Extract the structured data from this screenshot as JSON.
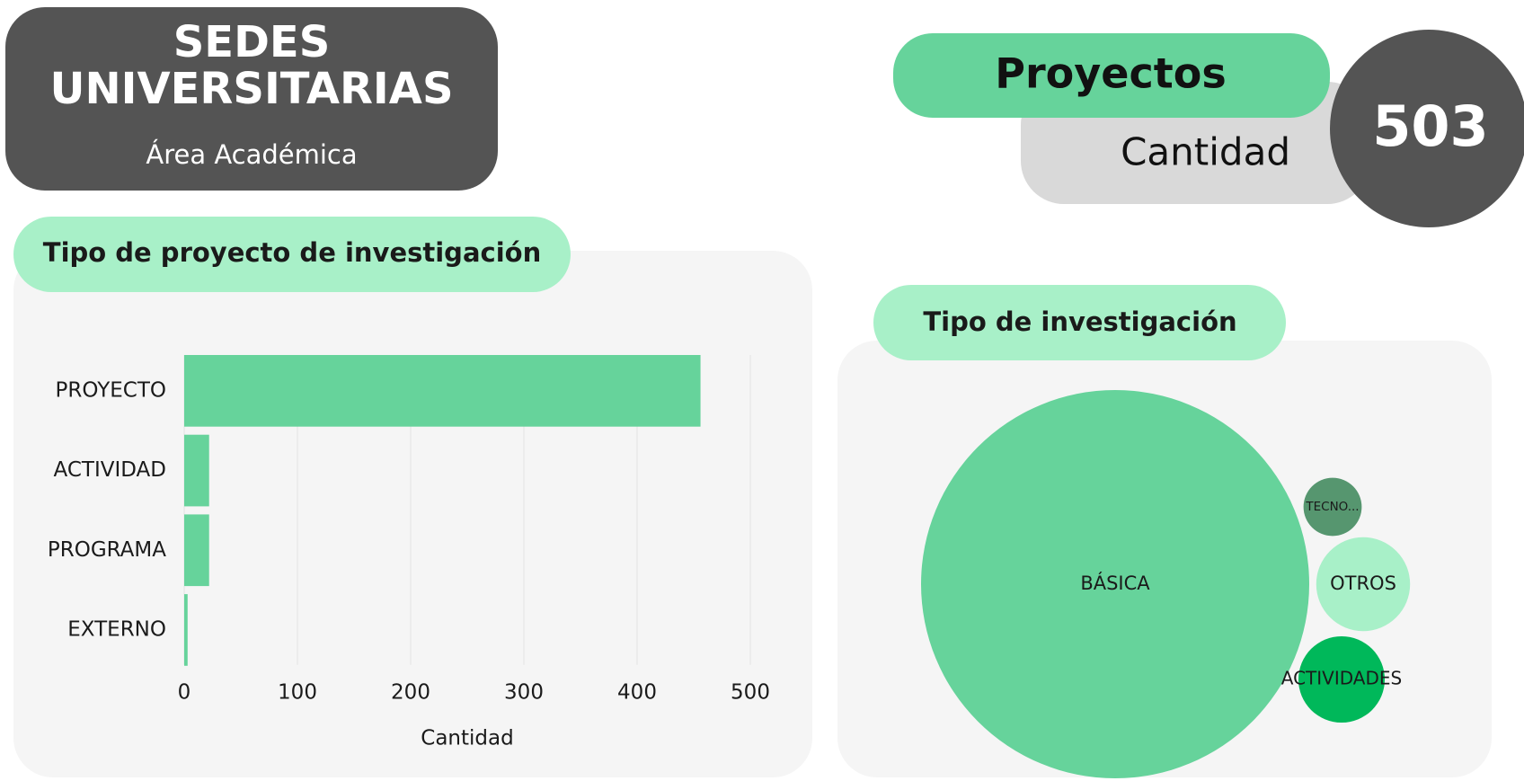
{
  "header": {
    "title_line1": "SEDES",
    "title_line2": "UNIVERSITARIAS",
    "subtitle": "Área Académica"
  },
  "kpi": {
    "label": "Proyectos",
    "sublabel": "Cantidad",
    "value": 503
  },
  "chart_data": [
    {
      "type": "hbar",
      "title": "Tipo de proyecto de investigación",
      "x_label": "Cantidad",
      "categories": [
        "PROYECTO",
        "ACTIVIDAD",
        "PROGRAMA",
        "EXTERNO"
      ],
      "values": [
        456,
        22,
        22,
        3
      ],
      "color": "#66d39b",
      "xlim": [
        0,
        530
      ],
      "xticks": [
        0,
        100,
        200,
        300,
        400,
        500
      ],
      "grid": true
    },
    {
      "type": "bubble",
      "title": "Tipo de investigación",
      "categories": [
        "BÁSICA",
        "TECNO...",
        "OTROS",
        "ACTIVIDADES"
      ],
      "values": [
        445,
        10,
        26,
        22
      ],
      "colors": [
        "#66d39b",
        "#56966f",
        "#a8f0c8",
        "#00b85a"
      ]
    }
  ]
}
